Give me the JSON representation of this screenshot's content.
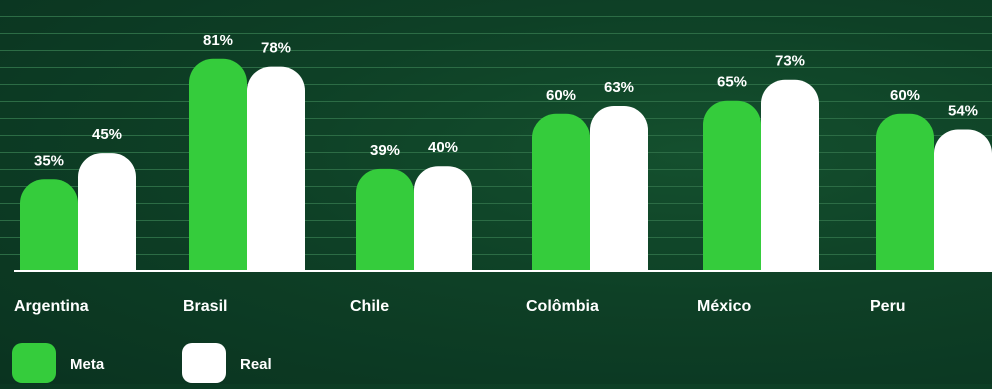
{
  "chart_data": {
    "type": "bar",
    "categories": [
      "Argentina",
      "Brasil",
      "Chile",
      "Colômbia",
      "México",
      "Peru"
    ],
    "series": [
      {
        "name": "Meta",
        "values": [
          35,
          81,
          39,
          60,
          65,
          60
        ],
        "labels": [
          "35%",
          "81%",
          "39%",
          "60%",
          "65%",
          "60%"
        ]
      },
      {
        "name": "Real",
        "values": [
          45,
          78,
          40,
          63,
          73,
          54
        ],
        "labels": [
          "45%",
          "78%",
          "40%",
          "63%",
          "73%",
          "54%"
        ]
      }
    ],
    "ylim": [
      0,
      100
    ],
    "grid": true,
    "legend_position": "bottom-left",
    "colors": {
      "Meta": "#35cc3c",
      "Real": "#ffffff",
      "gridline": "#2c6c45",
      "baseline": "#ffffff",
      "text": "#ffffff"
    }
  }
}
